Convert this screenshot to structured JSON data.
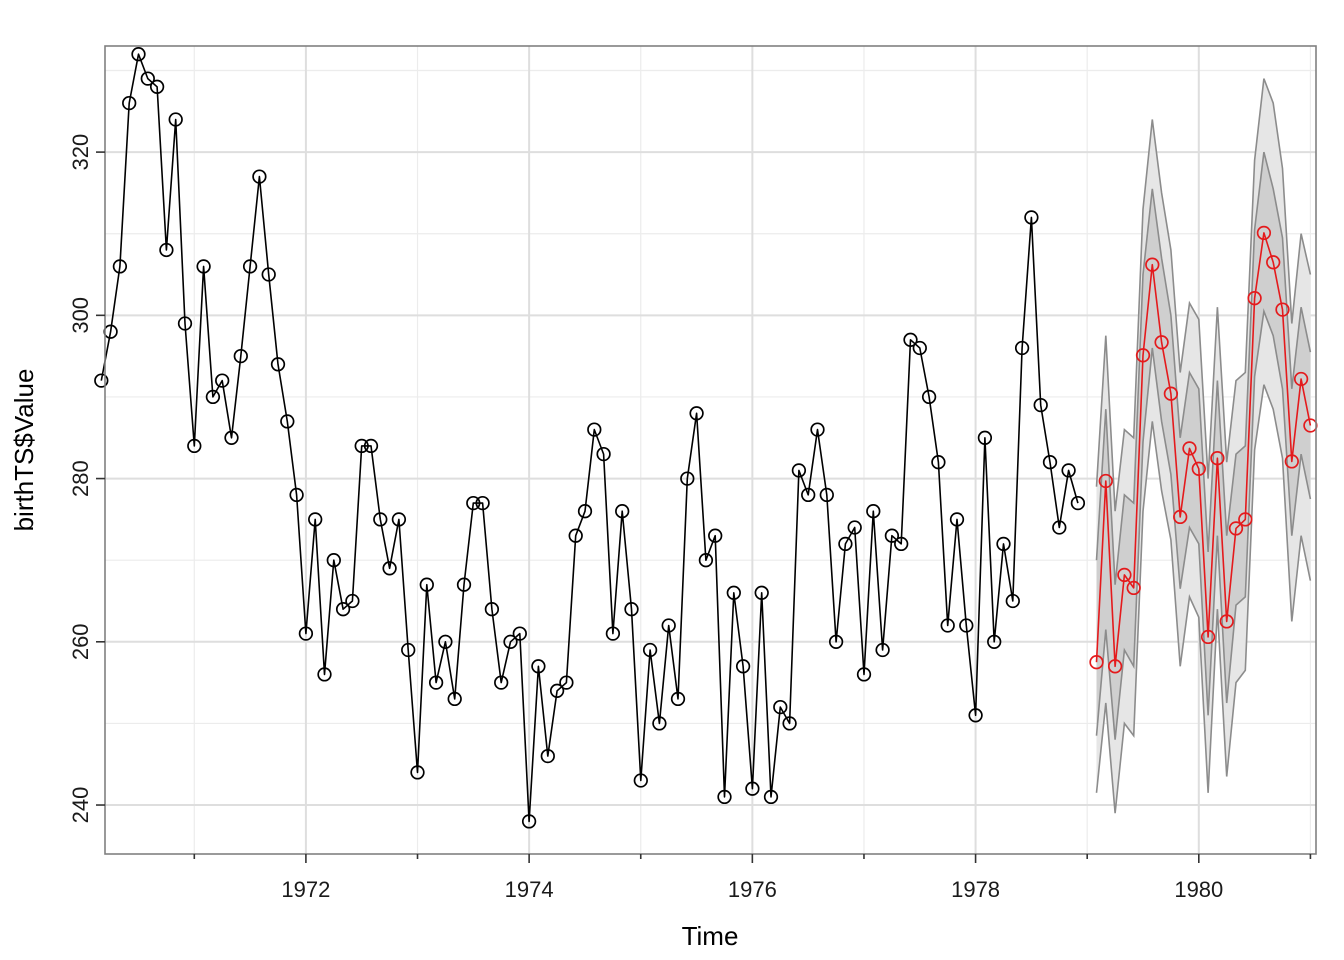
{
  "chart_data": {
    "type": "line",
    "title": "",
    "xlabel": "Time",
    "ylabel": "birthTS$Value",
    "xlim": [
      1970.2,
      1981.05
    ],
    "ylim": [
      234,
      333
    ],
    "grid": true,
    "x_ticks": [
      {
        "value": 1972,
        "label": "1972"
      },
      {
        "value": 1974,
        "label": "1974"
      },
      {
        "value": 1976,
        "label": "1976"
      },
      {
        "value": 1978,
        "label": "1978"
      },
      {
        "value": 1980,
        "label": "1980"
      }
    ],
    "y_ticks": [
      {
        "value": 240,
        "label": "240"
      },
      {
        "value": 260,
        "label": "260"
      },
      {
        "value": 280,
        "label": "280"
      },
      {
        "value": 300,
        "label": "300"
      },
      {
        "value": 320,
        "label": "320"
      }
    ],
    "series": [
      {
        "color": "#000000",
        "start": 1970.167,
        "step": 0.08333,
        "values": [
          292,
          298,
          306,
          326,
          332,
          329,
          328,
          308,
          324,
          299,
          284,
          306,
          290,
          292,
          285,
          295,
          306,
          317,
          305,
          294,
          287,
          278,
          261,
          275,
          256,
          270,
          264,
          265,
          284,
          284,
          275,
          269,
          275,
          259,
          244,
          267,
          255,
          260,
          253,
          267,
          277,
          277,
          264,
          255,
          260,
          261,
          238,
          257,
          246,
          254,
          255,
          273,
          276,
          286,
          283,
          261,
          276,
          264,
          243,
          259,
          250,
          262,
          253,
          280,
          288,
          270,
          273,
          241,
          266,
          257,
          242,
          266,
          241,
          252,
          250,
          281,
          278,
          286,
          278,
          260,
          272,
          274,
          256,
          276,
          259,
          273,
          272,
          297,
          296,
          290,
          282,
          262,
          275,
          262,
          251,
          285,
          260,
          272,
          265,
          296,
          312,
          289,
          282,
          274,
          281,
          277
        ]
      },
      {
        "color": "#e41a1c",
        "start": 1979.083,
        "step": 0.08333,
        "values": [
          257.5,
          279.7,
          257.0,
          268.2,
          266.6,
          295.1,
          306.2,
          296.7,
          290.4,
          275.3,
          283.7,
          281.2,
          260.6,
          282.5,
          262.5,
          273.9,
          275.0,
          302.1,
          310.1,
          306.5,
          300.7,
          282.1,
          292.2,
          286.5
        ]
      }
    ],
    "band_80_upper": [
      270,
      288.5,
      267,
      278,
      277,
      305,
      315.5,
      307,
      300,
      285,
      293,
      291,
      271,
      292,
      273,
      283,
      284,
      310.5,
      320,
      315.5,
      309.5,
      291,
      301,
      295.5
    ],
    "band_80_lower": [
      248.5,
      261.5,
      248,
      259,
      257,
      284.5,
      296,
      287,
      280.5,
      266.5,
      274,
      272,
      251,
      273,
      252.5,
      264.5,
      265.5,
      292.5,
      300.5,
      297.5,
      291,
      273,
      283,
      277.5
    ],
    "band_95_upper": [
      279,
      297.5,
      276,
      286,
      285,
      313,
      324,
      315,
      308,
      293,
      301.5,
      299.5,
      280,
      301,
      282,
      292,
      293,
      319,
      329,
      326,
      318,
      299,
      310,
      305
    ],
    "band_95_lower": [
      241.5,
      252.5,
      239,
      250,
      248.5,
      276,
      287,
      278.5,
      272.5,
      257,
      265.5,
      263,
      241.5,
      264,
      243.5,
      255,
      256.5,
      283.5,
      291.5,
      288.5,
      282.5,
      262.5,
      273,
      267.5
    ]
  }
}
